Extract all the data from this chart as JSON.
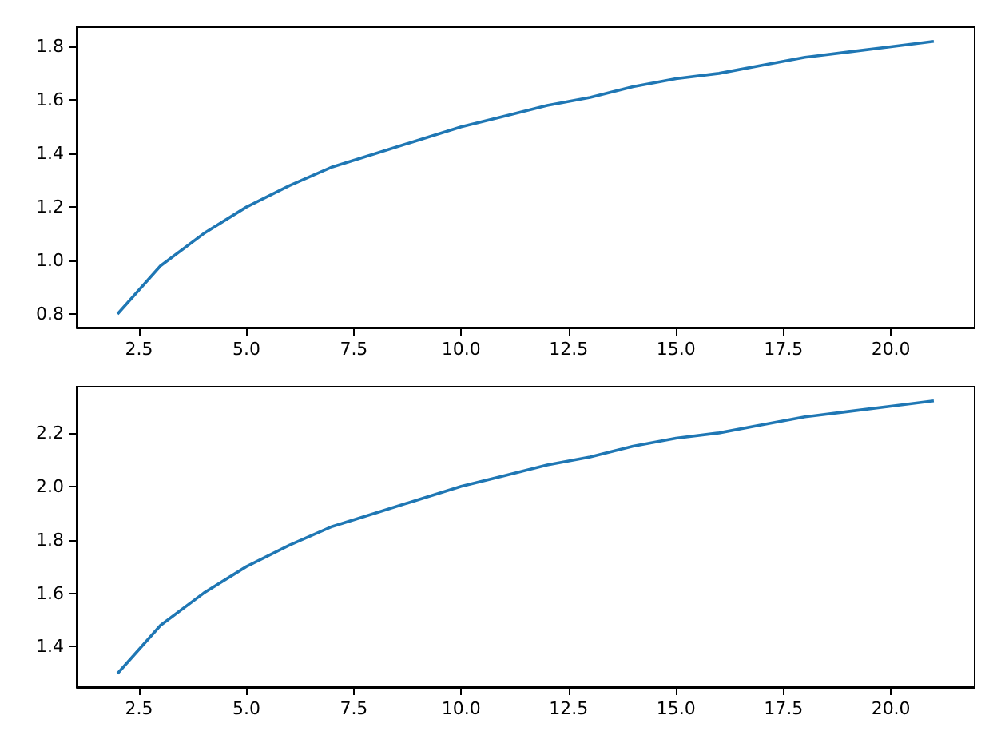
{
  "chart_data": [
    {
      "type": "line",
      "x": [
        2,
        3,
        4,
        5,
        6,
        7,
        8,
        9,
        10,
        11,
        12,
        13,
        14,
        15,
        16,
        17,
        18,
        19,
        20,
        21
      ],
      "series": [
        {
          "color": "#1f77b4",
          "values": [
            0.8,
            0.98,
            1.1,
            1.2,
            1.28,
            1.35,
            1.4,
            1.45,
            1.5,
            1.54,
            1.58,
            1.61,
            1.65,
            1.68,
            1.7,
            1.73,
            1.76,
            1.78,
            1.8,
            1.82
          ]
        }
      ],
      "xlim": [
        1.05,
        21.95
      ],
      "ylim": [
        0.749,
        1.873
      ],
      "xticks": [
        {
          "value": 2.5,
          "label": "2.5"
        },
        {
          "value": 5,
          "label": "5.0"
        },
        {
          "value": 7.5,
          "label": "7.5"
        },
        {
          "value": 10,
          "label": "10.0"
        },
        {
          "value": 12.5,
          "label": "12.5"
        },
        {
          "value": 15,
          "label": "15.0"
        },
        {
          "value": 17.5,
          "label": "17.5"
        },
        {
          "value": 20,
          "label": "20.0"
        }
      ],
      "yticks": [
        {
          "value": 0.8,
          "label": "0.8"
        },
        {
          "value": 1.0,
          "label": "1.0"
        },
        {
          "value": 1.2,
          "label": "1.2"
        },
        {
          "value": 1.4,
          "label": "1.4"
        },
        {
          "value": 1.6,
          "label": "1.6"
        },
        {
          "value": 1.8,
          "label": "1.8"
        }
      ],
      "grid": false
    },
    {
      "type": "line",
      "x": [
        2,
        3,
        4,
        5,
        6,
        7,
        8,
        9,
        10,
        11,
        12,
        13,
        14,
        15,
        16,
        17,
        18,
        19,
        20,
        21
      ],
      "series": [
        {
          "color": "#1f77b4",
          "values": [
            1.3,
            1.48,
            1.6,
            1.7,
            1.78,
            1.85,
            1.9,
            1.95,
            2.0,
            2.04,
            2.08,
            2.11,
            2.15,
            2.18,
            2.2,
            2.23,
            2.26,
            2.28,
            2.3,
            2.32
          ]
        }
      ],
      "xlim": [
        1.05,
        21.95
      ],
      "ylim": [
        1.249,
        2.373
      ],
      "xticks": [
        {
          "value": 2.5,
          "label": "2.5"
        },
        {
          "value": 5,
          "label": "5.0"
        },
        {
          "value": 7.5,
          "label": "7.5"
        },
        {
          "value": 10,
          "label": "10.0"
        },
        {
          "value": 12.5,
          "label": "12.5"
        },
        {
          "value": 15,
          "label": "15.0"
        },
        {
          "value": 17.5,
          "label": "17.5"
        },
        {
          "value": 20,
          "label": "20.0"
        }
      ],
      "yticks": [
        {
          "value": 1.4,
          "label": "1.4"
        },
        {
          "value": 1.6,
          "label": "1.6"
        },
        {
          "value": 1.8,
          "label": "1.8"
        },
        {
          "value": 2.0,
          "label": "2.0"
        },
        {
          "value": 2.2,
          "label": "2.2"
        }
      ],
      "grid": false
    }
  ]
}
